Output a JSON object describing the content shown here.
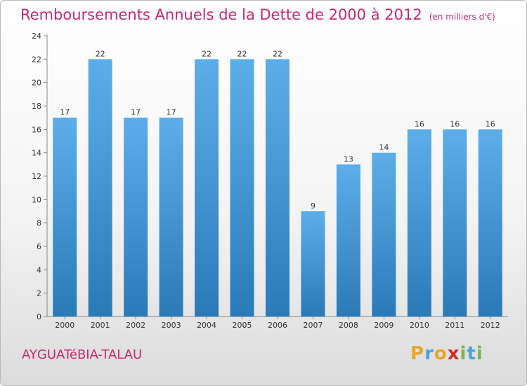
{
  "title": "Remboursements Annuels de la Dette de 2000 à 2012",
  "subtitle": "(en milliers d'€)",
  "location": "AYGUATéBIA-TALAU",
  "logo": {
    "letters": [
      "P",
      "r",
      "o",
      "x",
      "i",
      "t",
      "i"
    ],
    "colors": [
      "#e8a52a",
      "#4aa3df",
      "#e8a52a",
      "#d12a2a",
      "#7ab648",
      "#4aa3df",
      "#7ab648"
    ]
  },
  "colors": {
    "bar_light": "#5daee8",
    "bar_dark": "#2a7ab8",
    "accent": "#c8286e"
  },
  "chart_data": {
    "type": "bar",
    "categories": [
      "2000",
      "2001",
      "2002",
      "2003",
      "2004",
      "2005",
      "2006",
      "2007",
      "2008",
      "2009",
      "2010",
      "2011",
      "2012"
    ],
    "values": [
      17,
      22,
      17,
      17,
      22,
      22,
      22,
      9,
      13,
      14,
      16,
      16,
      16
    ],
    "yticks": [
      0,
      2,
      4,
      6,
      8,
      10,
      12,
      14,
      16,
      18,
      20,
      22,
      24
    ],
    "ylim": [
      0,
      24
    ],
    "grid": false,
    "xlabel": "",
    "ylabel": ""
  }
}
